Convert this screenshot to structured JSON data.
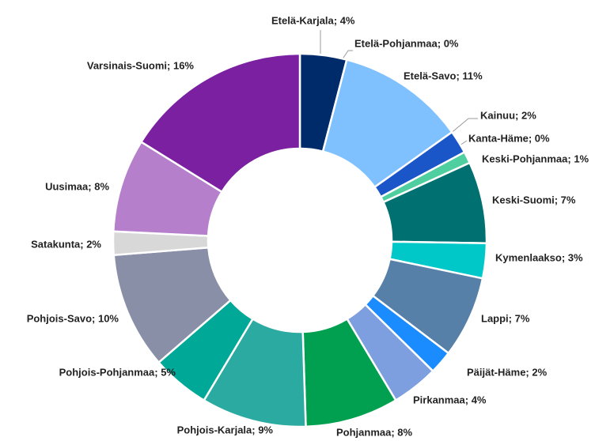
{
  "chart_data": {
    "type": "donut",
    "values": [
      4,
      0,
      11,
      2,
      0,
      1,
      7,
      3,
      7,
      2,
      4,
      8,
      9,
      5,
      10,
      2,
      8,
      16
    ],
    "value_labels": [
      "Etelä-Karjala; 4%",
      "Etelä-Pohjanmaa; 0%",
      "Etelä-Savo; 11%",
      "Kainuu;  2%",
      "Kanta-Häme; 0%",
      "Keski-Pohjanmaa; 1%",
      "Keski-Suomi; 7%",
      "Kymenlaakso; 3%",
      "Lappi; 7%",
      "Päijät-Häme; 2%",
      "Pirkanmaa; 4%",
      "Pohjanmaa; 8%",
      "Pohjois-Karjala; 9%",
      "Pohjois-Pohjanmaa; 5%",
      "Pohjois-Savo; 10%",
      "Satakunta; 2%",
      "Uusimaa;  8%",
      "Varsinais-Suomi;  16%"
    ],
    "colors": [
      "#002b6b",
      "#5aaaf0",
      "#7fc1ff",
      "#1a56c8",
      "#3fa7e0",
      "#4fcfa0",
      "#007070",
      "#00c8c8",
      "#5680a8",
      "#1a8cff",
      "#7d9fe0",
      "#00a050",
      "#2aaaa0",
      "#00a898",
      "#8a8fa8",
      "#d8d8d8",
      "#b57fcc",
      "#7a20a0"
    ]
  }
}
